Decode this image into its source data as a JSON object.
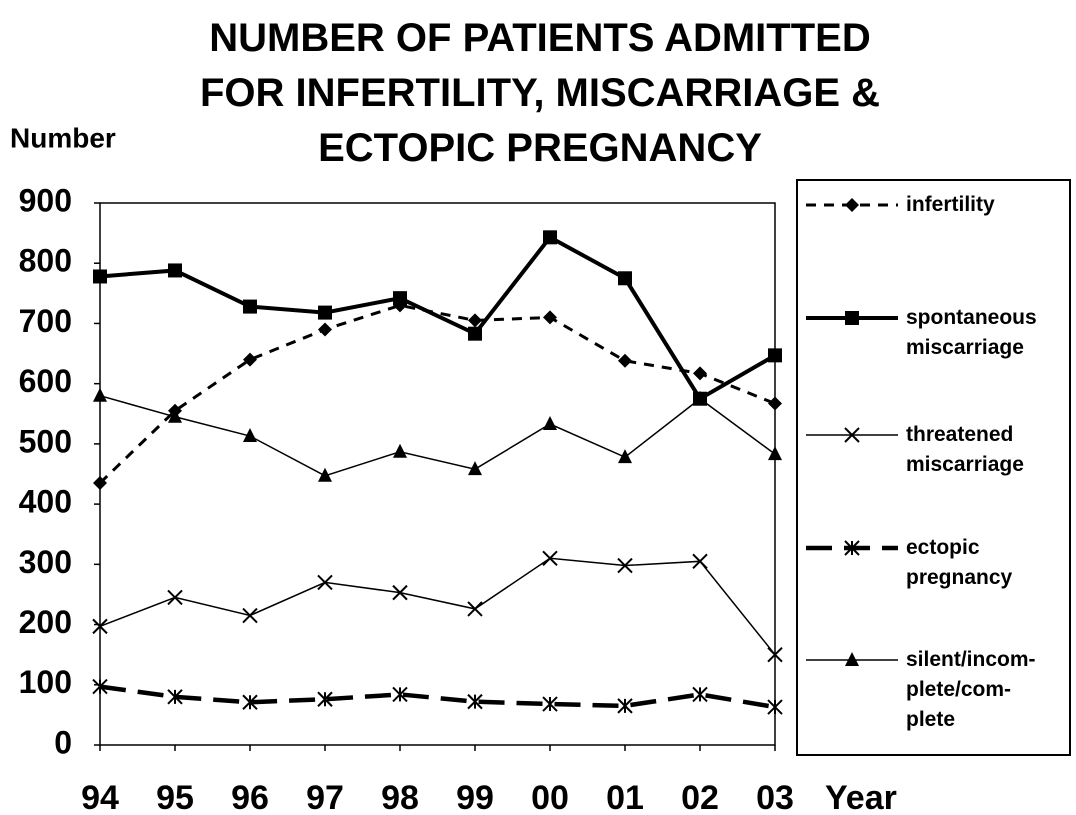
{
  "chart_data": {
    "type": "line",
    "title": "NUMBER OF PATIENTS ADMITTED\nFOR INFERTILITY, MISCARRIAGE &\nECTOPIC PREGNANCY",
    "y_label": "Number",
    "x_label": "Year",
    "categories": [
      "94",
      "95",
      "96",
      "97",
      "98",
      "99",
      "00",
      "01",
      "02",
      "03"
    ],
    "ylim": [
      0,
      900
    ],
    "yticks": [
      0,
      100,
      200,
      300,
      400,
      500,
      600,
      700,
      800,
      900
    ],
    "grid": false,
    "legend": "right",
    "series": [
      {
        "name": "infertility",
        "color": "#000000",
        "marker": "diamond",
        "line_style": "dashed",
        "values": [
          435,
          555,
          640,
          690,
          730,
          705,
          710,
          638,
          617,
          567
        ]
      },
      {
        "name": "spontaneous\nmiscarriage",
        "color": "#000000",
        "marker": "square",
        "line_style": "thick",
        "values": [
          778,
          788,
          728,
          718,
          742,
          683,
          843,
          775,
          575,
          647
        ]
      },
      {
        "name": "threatened\nmiscarriage",
        "color": "#000000",
        "marker": "cross",
        "line_style": "thin",
        "values": [
          197,
          245,
          215,
          270,
          253,
          226,
          310,
          298,
          305,
          150
        ]
      },
      {
        "name": "ectopic\npregnancy",
        "color": "#000000",
        "marker": "asterisk",
        "line_style": "thick-dashed",
        "values": [
          97,
          80,
          71,
          76,
          84,
          72,
          68,
          65,
          84,
          63
        ]
      },
      {
        "name": "silent/incom-\nplete/com-\nplete",
        "color": "#000000",
        "marker": "triangle",
        "line_style": "thin",
        "values": [
          580,
          545,
          513,
          447,
          487,
          458,
          533,
          478,
          575,
          483
        ]
      }
    ]
  }
}
